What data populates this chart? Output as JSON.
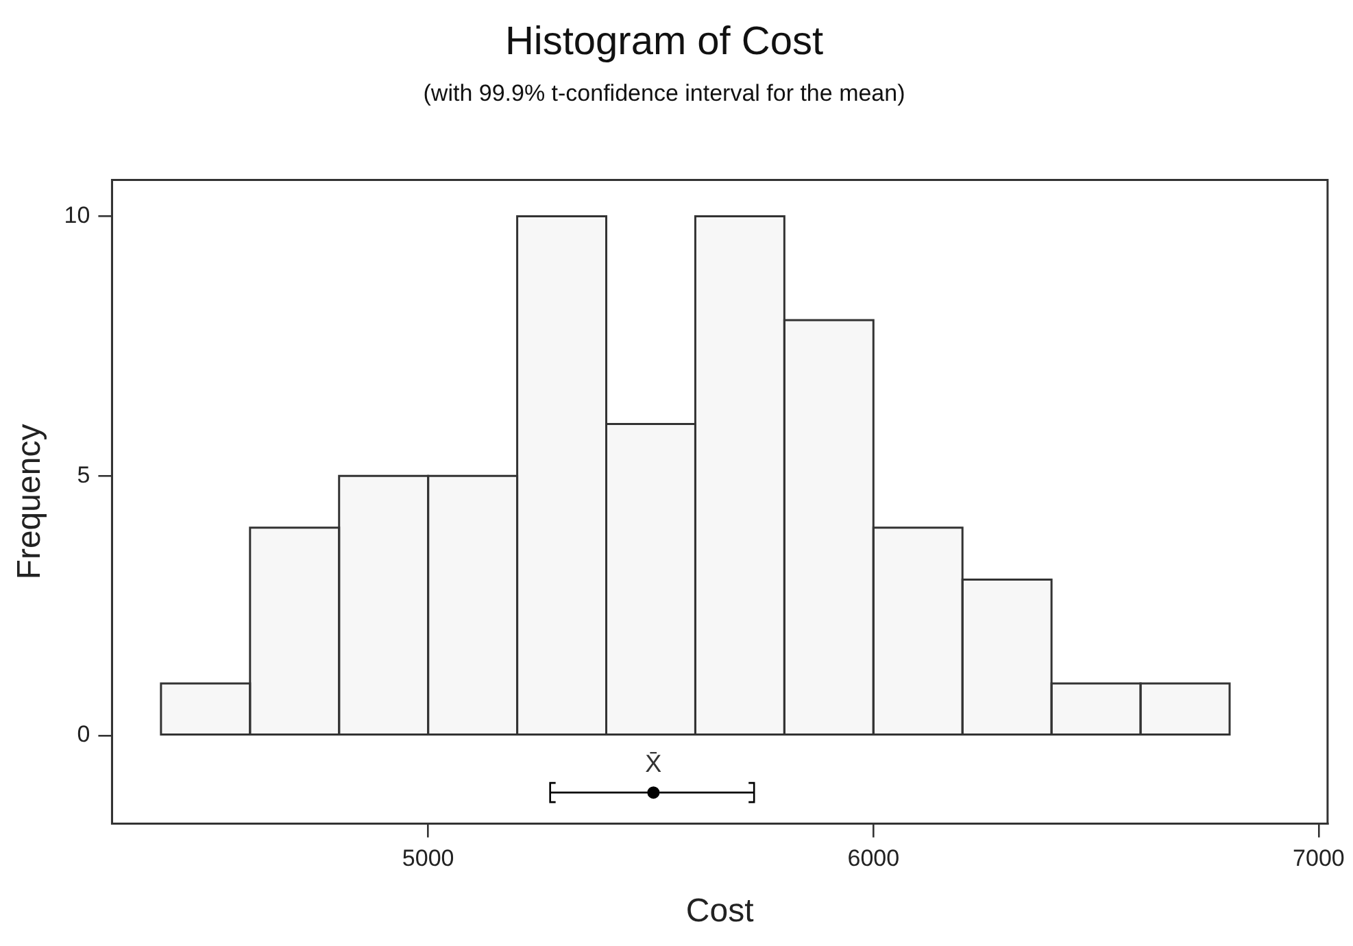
{
  "chart_data": {
    "type": "histogram",
    "title": "Histogram of Cost",
    "subtitle": "(with 99.9% t-confidence interval for the mean)",
    "xlabel": "Cost",
    "ylabel": "Frequency",
    "bins": [
      4400,
      4600,
      4800,
      5000,
      5200,
      5400,
      5600,
      5800,
      6000,
      6200,
      6400,
      6600,
      6800
    ],
    "values": [
      1,
      4,
      5,
      5,
      10,
      6,
      10,
      8,
      4,
      3,
      1,
      1
    ],
    "color": "#f7f7f7",
    "series": [
      {
        "type": "scatter",
        "x": [
          5506
        ],
        "values": [
          -1.1
        ],
        "xerrors": [
          [
            5274,
            5732
          ]
        ],
        "color": "#000000",
        "marker": "circle"
      }
    ],
    "annotations": [
      "X̄"
    ],
    "xlim": [
      4290,
      7020
    ],
    "ylim": [
      -1.7,
      10.7
    ],
    "xticks": [
      5000,
      6000,
      7000
    ],
    "yticks": [
      0,
      5,
      10
    ],
    "grid": false,
    "legend": false
  }
}
